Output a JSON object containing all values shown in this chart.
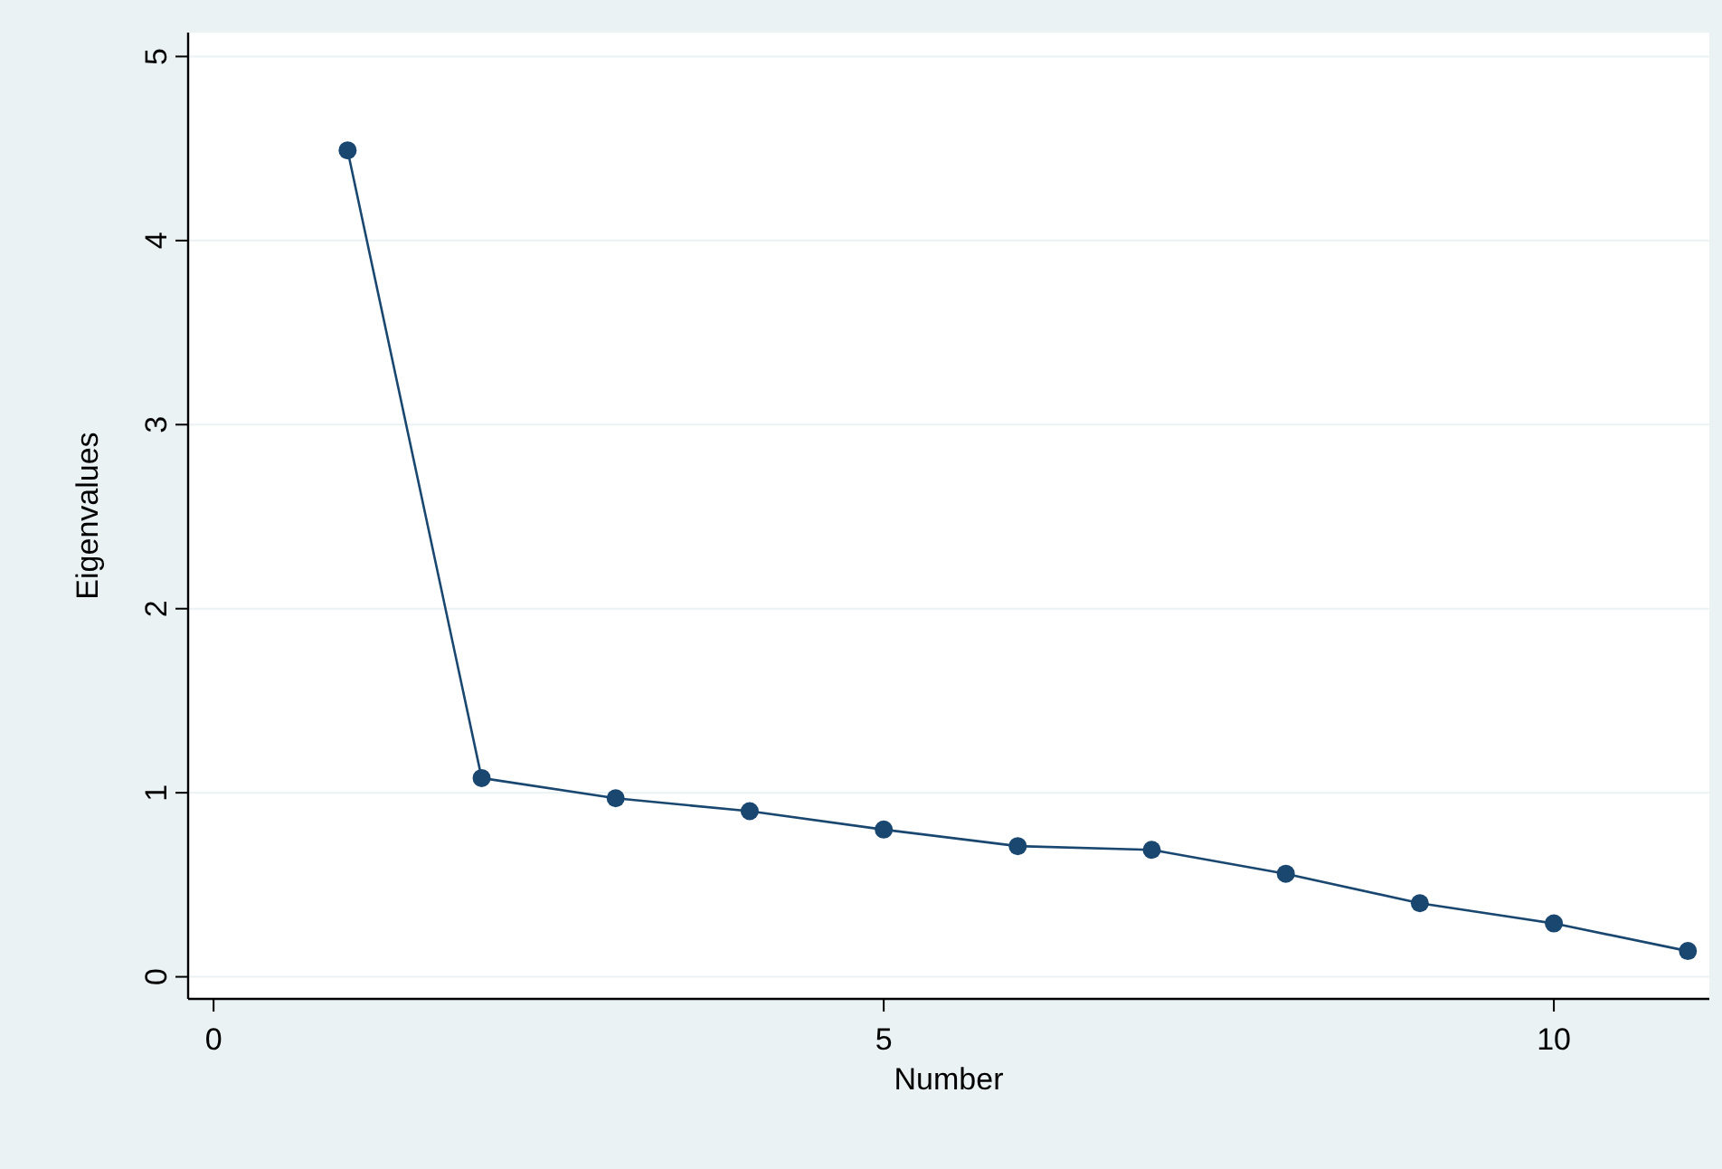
{
  "chart_data": {
    "type": "line",
    "xlabel": "Number",
    "ylabel": "Eigenvalues",
    "x": [
      1,
      2,
      3,
      4,
      5,
      6,
      7,
      8,
      9,
      10,
      11
    ],
    "series": [
      {
        "color": "#1a476f",
        "values": [
          4.49,
          1.08,
          0.97,
          0.9,
          0.8,
          0.71,
          0.69,
          0.56,
          0.4,
          0.29,
          0.14
        ]
      }
    ],
    "xlim": [
      -0.19,
      11.16
    ],
    "ylim": [
      -0.12,
      5.13
    ],
    "xticks": [
      0,
      5,
      10
    ],
    "yticks": [
      0,
      1,
      2,
      3,
      4,
      5
    ],
    "grid": "y",
    "marker": "circle"
  }
}
